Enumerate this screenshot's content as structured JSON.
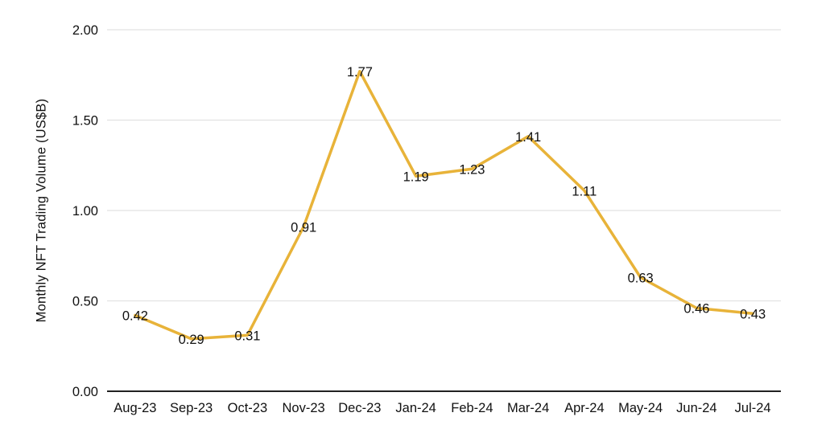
{
  "chart_data": {
    "type": "line",
    "title": "",
    "xlabel": "",
    "ylabel": "Monthly NFT Trading Volume (US$B)",
    "categories": [
      "Aug-23",
      "Sep-23",
      "Oct-23",
      "Nov-23",
      "Dec-23",
      "Jan-24",
      "Feb-24",
      "Mar-24",
      "Apr-24",
      "May-24",
      "Jun-24",
      "Jul-24"
    ],
    "values": [
      0.42,
      0.29,
      0.31,
      0.91,
      1.77,
      1.19,
      1.23,
      1.41,
      1.11,
      0.63,
      0.46,
      0.43
    ],
    "data_labels": [
      "0.42",
      "0.29",
      "0.31",
      "0.91",
      "1.77",
      "1.19",
      "1.23",
      "1.41",
      "1.11",
      "0.63",
      "0.46",
      "0.43"
    ],
    "ylim": [
      0,
      2
    ],
    "yticks": [
      0,
      0.5,
      1,
      1.5,
      2
    ],
    "ytick_labels": [
      "0.00",
      "0.50",
      "1.00",
      "1.50",
      "2.00"
    ],
    "grid": true,
    "legend": "none",
    "colors": {
      "line": "#E8B339",
      "gridline": "#E2E2E2",
      "axis_line": "#212121",
      "text": "#111111",
      "background": "#FFFFFF"
    }
  }
}
